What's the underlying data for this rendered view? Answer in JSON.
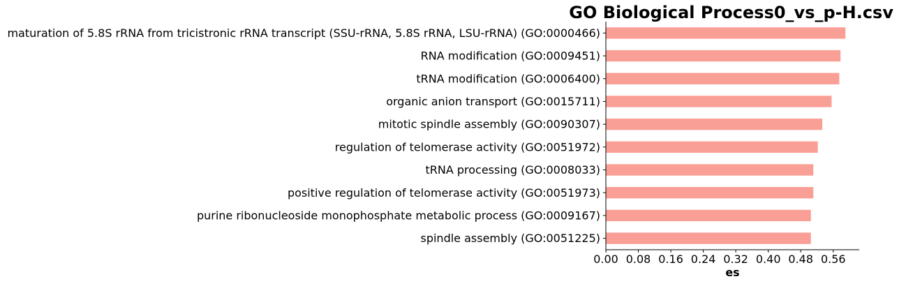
{
  "chart_data": {
    "type": "bar",
    "orientation": "horizontal",
    "title": "GO Biological Process0_vs_p-H.csv",
    "xlabel": "es",
    "ylabel": "",
    "xlim": [
      0,
      0.624
    ],
    "xticks": [
      0.0,
      0.08,
      0.16,
      0.24,
      0.32,
      0.4,
      0.48,
      0.56
    ],
    "xtick_labels": [
      "0.00",
      "0.08",
      "0.16",
      "0.24",
      "0.32",
      "0.40",
      "0.48",
      "0.56"
    ],
    "categories": [
      "maturation of 5.8S rRNA from tricistronic rRNA transcript (SSU-rRNA, 5.8S rRNA, LSU-rRNA) (GO:0000466)",
      "RNA modification (GO:0009451)",
      "tRNA modification (GO:0006400)",
      "organic anion transport (GO:0015711)",
      "mitotic spindle assembly (GO:0090307)",
      "regulation of telomerase activity (GO:0051972)",
      "tRNA processing (GO:0008033)",
      "positive regulation of telomerase activity (GO:0051973)",
      "purine ribonucleoside monophosphate metabolic process (GO:0009167)",
      "spindle assembly (GO:0051225)"
    ],
    "values": [
      0.59,
      0.578,
      0.575,
      0.556,
      0.533,
      0.522,
      0.511,
      0.511,
      0.505,
      0.505
    ],
    "bar_color": "#fa9f95",
    "grid": false,
    "legend": "none",
    "spines": [
      "left",
      "bottom"
    ]
  }
}
